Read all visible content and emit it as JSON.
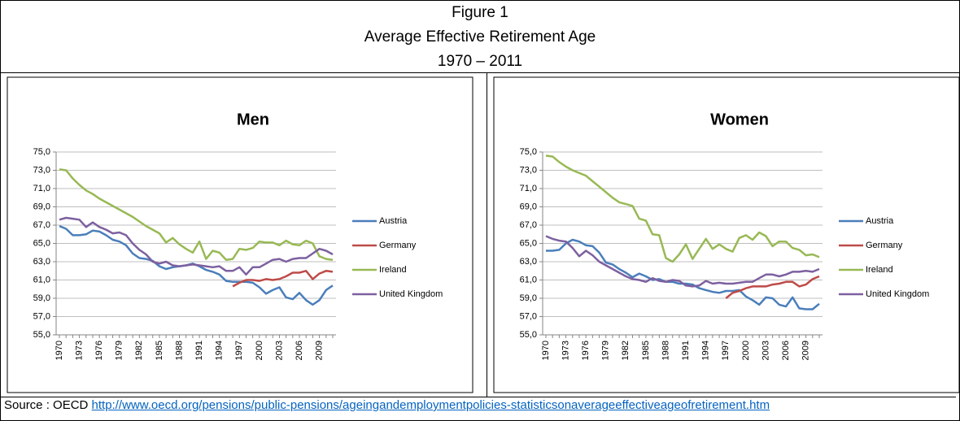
{
  "header": {
    "figure": "Figure 1",
    "title": "Average Effective Retirement Age",
    "period": "1970 – 2011"
  },
  "chart_data": [
    {
      "type": "line",
      "title": "Men",
      "x": [
        1970,
        1971,
        1972,
        1973,
        1974,
        1975,
        1976,
        1977,
        1978,
        1979,
        1980,
        1981,
        1982,
        1983,
        1984,
        1985,
        1986,
        1987,
        1988,
        1989,
        1990,
        1991,
        1992,
        1993,
        1994,
        1995,
        1996,
        1997,
        1998,
        1999,
        2000,
        2001,
        2002,
        2003,
        2004,
        2005,
        2006,
        2007,
        2008,
        2009,
        2010,
        2011
      ],
      "xlim": [
        1970,
        2011
      ],
      "xticks": [
        1970,
        1973,
        1976,
        1979,
        1982,
        1985,
        1988,
        1991,
        1994,
        1997,
        2000,
        2003,
        2006,
        2009
      ],
      "ylim": [
        55,
        75
      ],
      "yticks": [
        {
          "value": 55,
          "label": "55,0"
        },
        {
          "value": 57,
          "label": "57,0"
        },
        {
          "value": 59,
          "label": "59,0"
        },
        {
          "value": 61,
          "label": "61,0"
        },
        {
          "value": 63,
          "label": "63,0"
        },
        {
          "value": 65,
          "label": "65,0"
        },
        {
          "value": 67,
          "label": "67,0"
        },
        {
          "value": 69,
          "label": "69,0"
        },
        {
          "value": 71,
          "label": "71,0"
        },
        {
          "value": 73,
          "label": "73,0"
        },
        {
          "value": 75,
          "label": "75,0"
        }
      ],
      "grid": true,
      "legend": "right",
      "series": [
        {
          "name": "Austria",
          "color": "#4a7ebb",
          "values": [
            66.9,
            66.6,
            65.9,
            65.9,
            66.0,
            66.4,
            66.3,
            65.9,
            65.4,
            65.2,
            64.8,
            63.9,
            63.4,
            63.3,
            63.1,
            62.5,
            62.2,
            62.4,
            62.5,
            62.6,
            62.8,
            62.5,
            62.1,
            61.9,
            61.6,
            60.9,
            60.8,
            60.8,
            60.8,
            60.7,
            60.2,
            59.5,
            59.9,
            60.2,
            59.1,
            58.9,
            59.6,
            58.8,
            58.3,
            58.8,
            59.9,
            60.4
          ]
        },
        {
          "name": "Germany",
          "color": "#be4b48",
          "values": [
            null,
            null,
            null,
            null,
            null,
            null,
            null,
            null,
            null,
            null,
            null,
            null,
            null,
            null,
            null,
            null,
            null,
            null,
            null,
            null,
            null,
            null,
            null,
            null,
            null,
            null,
            60.3,
            60.7,
            61.0,
            61.0,
            60.9,
            61.1,
            61.0,
            61.1,
            61.4,
            61.8,
            61.8,
            62.0,
            61.1,
            61.7,
            62.0,
            61.9
          ]
        },
        {
          "name": "Ireland",
          "color": "#98b954",
          "values": [
            73.1,
            73.0,
            72.1,
            71.4,
            70.8,
            70.4,
            69.9,
            69.5,
            69.1,
            68.7,
            68.3,
            67.9,
            67.4,
            66.9,
            66.5,
            66.1,
            65.1,
            65.6,
            64.9,
            64.4,
            64.0,
            65.2,
            63.3,
            64.2,
            64.0,
            63.2,
            63.3,
            64.4,
            64.3,
            64.5,
            65.2,
            65.1,
            65.1,
            64.8,
            65.3,
            64.9,
            64.8,
            65.3,
            65.0,
            63.6,
            63.3,
            63.2
          ]
        },
        {
          "name": "United Kingdom",
          "color": "#7d60a0",
          "values": [
            67.6,
            67.8,
            67.7,
            67.6,
            66.8,
            67.3,
            66.8,
            66.5,
            66.1,
            66.2,
            65.9,
            65.0,
            64.3,
            63.8,
            63.0,
            62.8,
            63.0,
            62.6,
            62.5,
            62.6,
            62.7,
            62.6,
            62.5,
            62.4,
            62.5,
            62.0,
            62.0,
            62.4,
            61.6,
            62.4,
            62.4,
            62.8,
            63.2,
            63.3,
            63.0,
            63.3,
            63.4,
            63.4,
            63.9,
            64.4,
            64.2,
            63.8
          ]
        }
      ]
    },
    {
      "type": "line",
      "title": "Women",
      "x": [
        1970,
        1971,
        1972,
        1973,
        1974,
        1975,
        1976,
        1977,
        1978,
        1979,
        1980,
        1981,
        1982,
        1983,
        1984,
        1985,
        1986,
        1987,
        1988,
        1989,
        1990,
        1991,
        1992,
        1993,
        1994,
        1995,
        1996,
        1997,
        1998,
        1999,
        2000,
        2001,
        2002,
        2003,
        2004,
        2005,
        2006,
        2007,
        2008,
        2009,
        2010,
        2011
      ],
      "xlim": [
        1970,
        2011
      ],
      "xticks": [
        1970,
        1973,
        1976,
        1979,
        1982,
        1985,
        1988,
        1991,
        1994,
        1997,
        2000,
        2003,
        2006,
        2009
      ],
      "ylim": [
        55,
        75
      ],
      "yticks": [
        {
          "value": 55,
          "label": "55,0"
        },
        {
          "value": 57,
          "label": "57,0"
        },
        {
          "value": 59,
          "label": "59,0"
        },
        {
          "value": 61,
          "label": "61,0"
        },
        {
          "value": 63,
          "label": "63,0"
        },
        {
          "value": 65,
          "label": "65,0"
        },
        {
          "value": 67,
          "label": "67,0"
        },
        {
          "value": 69,
          "label": "69,0"
        },
        {
          "value": 71,
          "label": "71,0"
        },
        {
          "value": 73,
          "label": "73,0"
        },
        {
          "value": 75,
          "label": "75,0"
        }
      ],
      "grid": true,
      "legend": "right",
      "series": [
        {
          "name": "Austria",
          "color": "#4a7ebb",
          "values": [
            64.2,
            64.2,
            64.3,
            65.0,
            65.4,
            65.2,
            64.8,
            64.7,
            64.0,
            62.9,
            62.7,
            62.2,
            61.8,
            61.3,
            61.7,
            61.4,
            61.0,
            61.1,
            60.8,
            60.8,
            60.6,
            60.6,
            60.5,
            60.1,
            59.9,
            59.7,
            59.6,
            59.8,
            59.8,
            59.9,
            59.2,
            58.8,
            58.3,
            59.1,
            59.0,
            58.3,
            58.1,
            59.1,
            57.9,
            57.8,
            57.8,
            58.4
          ]
        },
        {
          "name": "Germany",
          "color": "#be4b48",
          "values": [
            null,
            null,
            null,
            null,
            null,
            null,
            null,
            null,
            null,
            null,
            null,
            null,
            null,
            null,
            null,
            null,
            null,
            null,
            null,
            null,
            null,
            null,
            null,
            null,
            null,
            null,
            null,
            59.0,
            59.6,
            59.8,
            60.1,
            60.3,
            60.3,
            60.3,
            60.5,
            60.6,
            60.8,
            60.8,
            60.3,
            60.5,
            61.1,
            61.4
          ]
        },
        {
          "name": "Ireland",
          "color": "#98b954",
          "values": [
            74.6,
            74.5,
            73.9,
            73.4,
            73.0,
            72.7,
            72.4,
            71.8,
            71.2,
            70.6,
            70.0,
            69.5,
            69.3,
            69.1,
            67.7,
            67.5,
            66.0,
            65.9,
            63.4,
            63.0,
            63.8,
            64.9,
            63.3,
            64.4,
            65.5,
            64.4,
            64.9,
            64.4,
            64.1,
            65.6,
            65.9,
            65.4,
            66.2,
            65.8,
            64.7,
            65.2,
            65.2,
            64.5,
            64.3,
            63.7,
            63.8,
            63.5
          ]
        },
        {
          "name": "United Kingdom",
          "color": "#7d60a0",
          "values": [
            65.8,
            65.5,
            65.3,
            65.2,
            64.5,
            63.6,
            64.2,
            63.7,
            63.0,
            62.6,
            62.2,
            61.8,
            61.4,
            61.1,
            61.0,
            60.8,
            61.2,
            60.9,
            60.8,
            61.0,
            60.9,
            60.4,
            60.3,
            60.4,
            60.9,
            60.6,
            60.7,
            60.6,
            60.6,
            60.7,
            60.8,
            60.8,
            61.2,
            61.6,
            61.6,
            61.4,
            61.6,
            61.9,
            61.9,
            62.0,
            61.9,
            62.2
          ]
        }
      ]
    }
  ],
  "source": {
    "label": "Source : OECD",
    "url": "http://www.oecd.org/pensions/public-pensions/ageingandemploymentpolicies-statisticsonaverageeffectiveageofretirement.htm"
  }
}
